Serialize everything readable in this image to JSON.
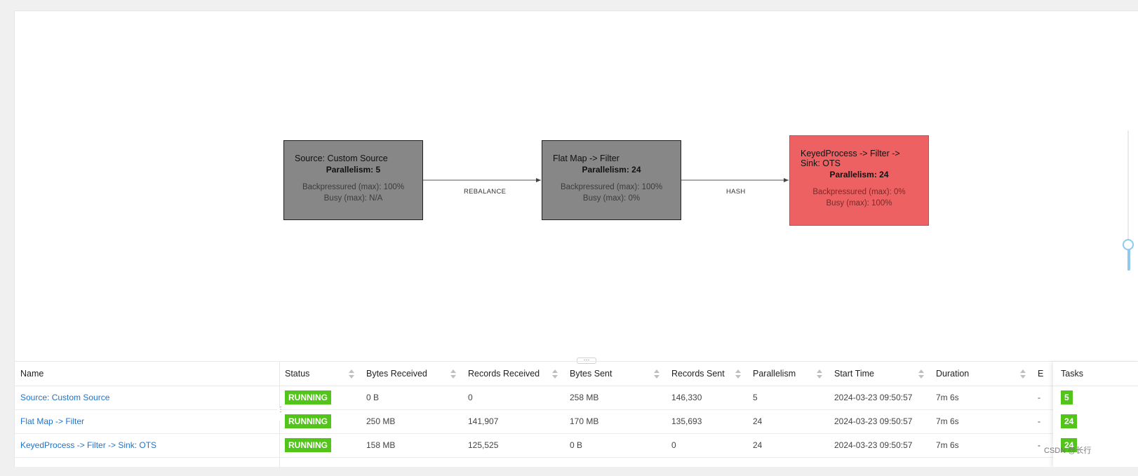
{
  "graph": {
    "nodes": [
      {
        "name": "Source: Custom Source",
        "parallelism": "Parallelism: 5",
        "backpressured": "Backpressured (max): 100%",
        "busy": "Busy (max): N/A",
        "status_color": "#878787"
      },
      {
        "name": "Flat Map -> Filter",
        "parallelism": "Parallelism: 24",
        "backpressured": "Backpressured (max): 100%",
        "busy": "Busy (max): 0%",
        "status_color": "#878787"
      },
      {
        "name": "KeyedProcess -> Filter -> Sink: OTS",
        "parallelism": "Parallelism: 24",
        "backpressured": "Backpressured (max): 0%",
        "busy": "Busy (max): 100%",
        "status_color": "#ed6163"
      }
    ],
    "edges": [
      {
        "label": "REBALANCE"
      },
      {
        "label": "HASH"
      }
    ],
    "splitter_label": "···"
  },
  "table": {
    "columns": {
      "name": "Name",
      "status": "Status",
      "bytes_received": "Bytes Received",
      "records_received": "Records Received",
      "bytes_sent": "Bytes Sent",
      "records_sent": "Records Sent",
      "parallelism": "Parallelism",
      "start_time": "Start Time",
      "duration": "Duration",
      "end_time": "E",
      "tasks": "Tasks"
    },
    "rows": [
      {
        "name": "Source: Custom Source",
        "status": "RUNNING",
        "bytes_received": "0 B",
        "records_received": "0",
        "bytes_sent": "258 MB",
        "records_sent": "146,330",
        "parallelism": "5",
        "start_time": "2024-03-23 09:50:57",
        "duration": "7m 6s",
        "end_time": "-",
        "tasks": "5"
      },
      {
        "name": "Flat Map -> Filter",
        "status": "RUNNING",
        "bytes_received": "250 MB",
        "records_received": "141,907",
        "bytes_sent": "170 MB",
        "records_sent": "135,693",
        "parallelism": "24",
        "start_time": "2024-03-23 09:50:57",
        "duration": "7m 6s",
        "end_time": "-",
        "tasks": "24"
      },
      {
        "name": "KeyedProcess -> Filter -> Sink: OTS",
        "status": "RUNNING",
        "bytes_received": "158 MB",
        "records_received": "125,525",
        "bytes_sent": "0 B",
        "records_sent": "0",
        "parallelism": "24",
        "start_time": "2024-03-23 09:50:57",
        "duration": "7m 6s",
        "end_time": "-",
        "tasks": "24"
      }
    ],
    "status_color": "#52c41a",
    "link_color": "#1f73c8"
  },
  "watermark": "CSDN @长行"
}
